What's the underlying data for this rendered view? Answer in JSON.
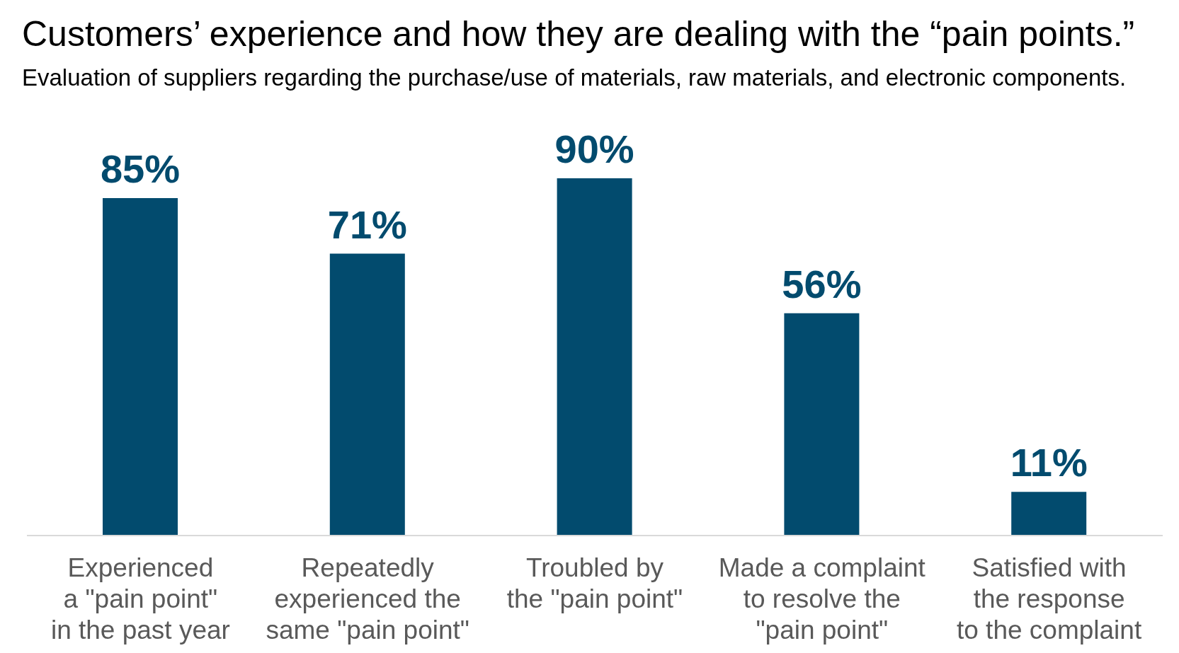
{
  "chart_data": {
    "type": "bar",
    "title": "Customers’ experience and how they are dealing with the “pain points.”",
    "subtitle": "Evaluation of suppliers regarding the purchase/use of materials, raw materials, and electronic components.",
    "categories": [
      "Experienced\na \"pain point\"\nin the past year",
      "Repeatedly\nexperienced the\nsame \"pain point\"",
      "Troubled by\nthe \"pain point\"",
      "Made a complaint\nto resolve the\n\"pain point\"",
      "Satisfied with\nthe response\nto the complaint"
    ],
    "values": [
      85,
      71,
      90,
      56,
      11
    ],
    "value_labels": [
      "85%",
      "71%",
      "90%",
      "56%",
      "11%"
    ],
    "color": "#024b6e"
  }
}
